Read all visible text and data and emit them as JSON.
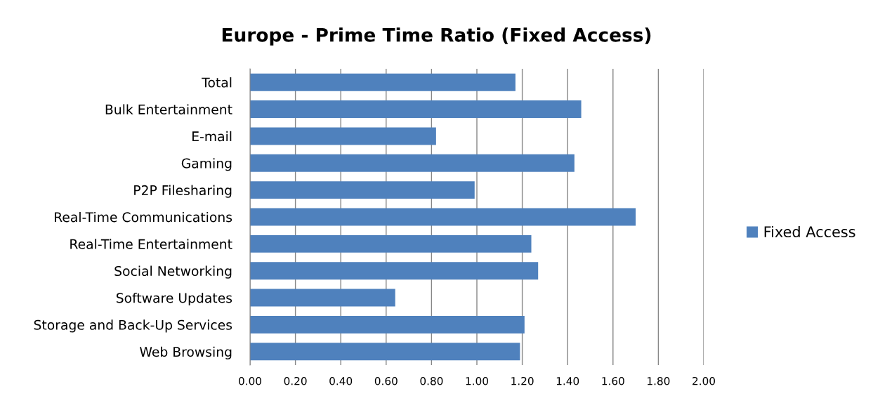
{
  "chart_data": {
    "type": "bar",
    "orientation": "horizontal",
    "title": "Europe - Prime Time Ratio (Fixed Access)",
    "categories": [
      "Total",
      "Bulk Entertainment",
      "E-mail",
      "Gaming",
      "P2P Filesharing",
      "Real-Time Communications",
      "Real-Time Entertainment",
      "Social Networking",
      "Software Updates",
      "Storage and Back-Up Services",
      "Web Browsing"
    ],
    "series": [
      {
        "name": "Fixed Access",
        "color": "#4f81bd",
        "values": [
          1.17,
          1.46,
          0.82,
          1.43,
          0.99,
          1.7,
          1.24,
          1.27,
          0.64,
          1.21,
          1.19
        ]
      }
    ],
    "xlim": [
      0,
      2
    ],
    "xticks": [
      {
        "value": 0,
        "label": "0.00"
      },
      {
        "value": 0.2,
        "label": "0.20"
      },
      {
        "value": 0.4,
        "label": "0.40"
      },
      {
        "value": 0.6,
        "label": "0.60"
      },
      {
        "value": 0.8,
        "label": "0.80"
      },
      {
        "value": 1.0,
        "label": "1.00"
      },
      {
        "value": 1.2,
        "label": "1.20"
      },
      {
        "value": 1.4,
        "label": "1.40"
      },
      {
        "value": 1.6,
        "label": "1.60"
      },
      {
        "value": 1.8,
        "label": "1.80"
      },
      {
        "value": 2.0,
        "label": "2.00"
      }
    ],
    "grid": "x",
    "legend": "right"
  }
}
